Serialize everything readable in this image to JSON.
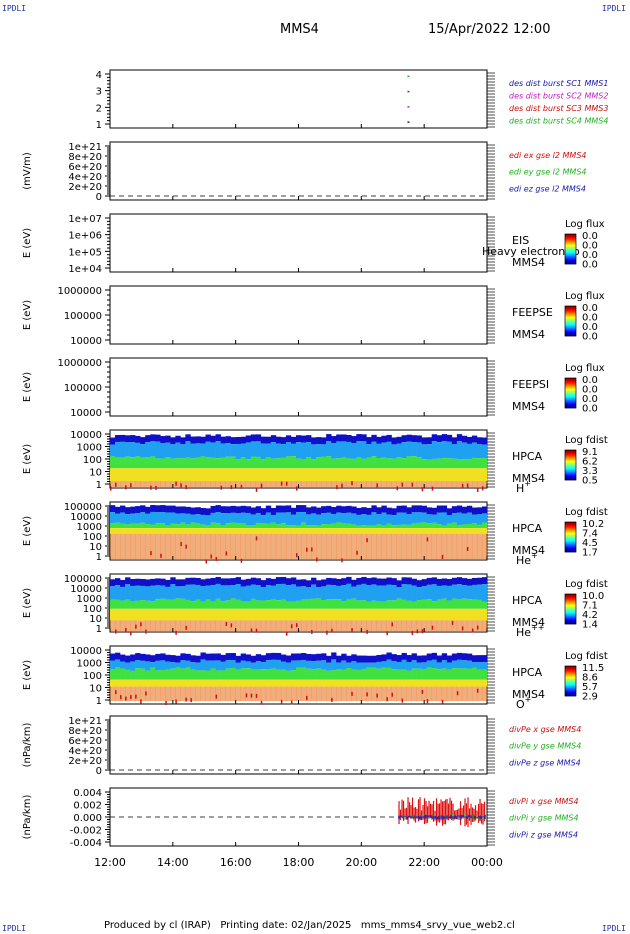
{
  "header": {
    "corner_tl": "IPDLI",
    "corner_tr": "IPDLI",
    "corner_bl": "IPDLI",
    "corner_br": "IPDLI",
    "spacecraft": "MMS4",
    "datetime": "15/Apr/2022 12:00"
  },
  "footer": {
    "text": "Produced by cl (IRAP)   Printing date: 02/Jan/2025   mms_mms4_srvy_vue_web2.cl"
  },
  "chart_data": [
    {
      "id": "p1",
      "type": "scatter",
      "ylabel": "",
      "ticks": [
        "1",
        "2",
        "3",
        "4"
      ],
      "ylim": [
        0.6,
        4.4
      ],
      "legend": [
        {
          "text": "des dist burst SC1 MMS1",
          "color": "#1a1aa8"
        },
        {
          "text": "des dist burst SC2 MMS2",
          "color": "#c020c0"
        },
        {
          "text": "des dist burst SC3 MMS3",
          "color": "#d01010"
        },
        {
          "text": "des dist burst SC4 MMS4",
          "color": "#20b020"
        }
      ],
      "points": [
        [
          21.5,
          4,
          "#20b020"
        ],
        [
          21.5,
          3,
          "#d01010"
        ],
        [
          21.5,
          2,
          "#c020c0"
        ],
        [
          21.5,
          1,
          "#1a1aa8"
        ]
      ]
    },
    {
      "id": "p2",
      "type": "line",
      "ylabel": "(mV/m)",
      "ticks": [
        "0",
        "2e+20",
        "4e+20",
        "6e+20",
        "8e+20",
        "1e+21"
      ],
      "legend": [
        {
          "text": "edi ex gse l2 MMS4",
          "color": "#d01010"
        },
        {
          "text": "edi ey gse l2 MMS4",
          "color": "#20b020"
        },
        {
          "text": "edi ez gse l2 MMS4",
          "color": "#1a1aa8"
        }
      ]
    },
    {
      "id": "p3",
      "type": "heatmap",
      "ylabel": "E (eV)",
      "ticks": [
        "1e+04",
        "1e+05",
        "1e+06",
        "1e+07"
      ],
      "labels": [
        "EIS",
        "MMS4"
      ],
      "overlay": "Heavy electron to",
      "colorbar": {
        "title": "Log flux",
        "values": [
          "0.0",
          "0.0",
          "0.0",
          "0.0"
        ]
      },
      "spectrum": null
    },
    {
      "id": "p4",
      "type": "heatmap",
      "ylabel": "E (eV)",
      "ticks": [
        "10000",
        "100000",
        "1000000"
      ],
      "labels": [
        "FEEPSE",
        "MMS4"
      ],
      "colorbar": {
        "title": "Log flux",
        "values": [
          "0.0",
          "0.0",
          "0.0",
          "0.0"
        ]
      },
      "spectrum": null
    },
    {
      "id": "p5",
      "type": "heatmap",
      "ylabel": "E (eV)",
      "ticks": [
        "10000",
        "100000",
        "1000000"
      ],
      "labels": [
        "FEEPSI",
        "MMS4"
      ],
      "colorbar": {
        "title": "Log flux",
        "values": [
          "0.0",
          "0.0",
          "0.0",
          "0.0"
        ]
      },
      "spectrum": null
    },
    {
      "id": "p6",
      "type": "heatmap",
      "ylabel": "E (eV)",
      "ticks": [
        "1",
        "10",
        "100",
        "1000",
        "10000"
      ],
      "labels": [
        "HPCA",
        "MMS4"
      ],
      "species": "H",
      "charge": "+",
      "colorbar": {
        "title": "Log fdist",
        "values": [
          "9.1",
          "6.2",
          "3.3",
          "0.5"
        ]
      },
      "spectrum": {
        "top": 0.9,
        "blue": 0.78,
        "green": 0.52,
        "yellow": 0.34,
        "red": 0.12,
        "bottom": 0.0
      }
    },
    {
      "id": "p7",
      "type": "heatmap",
      "ylabel": "E (eV)",
      "ticks": [
        "1",
        "10",
        "100",
        "1000",
        "10000",
        "100000"
      ],
      "labels": [
        "HPCA",
        "MMS4"
      ],
      "species": "He",
      "charge": "+",
      "colorbar": {
        "title": "Log fdist",
        "values": [
          "10.2",
          "7.4",
          "4.5",
          "1.7"
        ]
      },
      "spectrum": {
        "top": 0.92,
        "blue": 0.8,
        "green": 0.62,
        "yellow": 0.55,
        "red": 0.45,
        "bottom": 0.0
      }
    },
    {
      "id": "p8",
      "type": "heatmap",
      "ylabel": "E (eV)",
      "ticks": [
        "1",
        "10",
        "100",
        "1000",
        "10000",
        "100000"
      ],
      "labels": [
        "HPCA",
        "MMS4"
      ],
      "species": "He",
      "charge": "++",
      "colorbar": {
        "title": "Log fdist",
        "values": [
          "10.0",
          "7.1",
          "4.2",
          "1.4"
        ]
      },
      "spectrum": {
        "top": 0.92,
        "blue": 0.8,
        "green": 0.55,
        "yellow": 0.4,
        "red": 0.2,
        "bottom": 0.0
      }
    },
    {
      "id": "p9",
      "type": "heatmap",
      "ylabel": "E (eV)",
      "ticks": [
        "1",
        "10",
        "100",
        "1000",
        "10000"
      ],
      "labels": [
        "HPCA",
        "MMS4"
      ],
      "species": "O",
      "charge": "+",
      "colorbar": {
        "title": "Log fdist",
        "values": [
          "11.5",
          "8.6",
          "5.7",
          "2.9"
        ]
      },
      "spectrum": {
        "top": 0.86,
        "blue": 0.74,
        "green": 0.6,
        "yellow": 0.42,
        "red": 0.3,
        "bottom": 0.05
      }
    },
    {
      "id": "p10",
      "type": "line",
      "ylabel": "(nPa/km)",
      "ticks": [
        "0",
        "2e+20",
        "4e+20",
        "6e+20",
        "8e+20",
        "1e+21"
      ],
      "legend": [
        {
          "text": "divPe x gse MMS4",
          "color": "#d01010"
        },
        {
          "text": "divPe y gse MMS4",
          "color": "#20b020"
        },
        {
          "text": "divPe z gse MMS4",
          "color": "#1a1aa8"
        }
      ]
    },
    {
      "id": "p11",
      "type": "line",
      "ylabel": "(nPa/km)",
      "ticks": [
        "-0.004",
        "-0.002",
        "0.000",
        "0.002",
        "0.004"
      ],
      "ylim": [
        -0.0055,
        0.0055
      ],
      "legend": [
        {
          "text": "divPi x gse MMS4",
          "color": "#d01010"
        },
        {
          "text": "divPi y gse MMS4",
          "color": "#20b020"
        },
        {
          "text": "divPi z gse MMS4",
          "color": "#1a1aa8"
        }
      ],
      "signal": {
        "start": 21.2,
        "amplitude": 0.0038
      }
    }
  ],
  "time_axis": {
    "ticks": [
      "12:00",
      "14:00",
      "16:00",
      "18:00",
      "20:00",
      "22:00",
      "00:00"
    ],
    "range_hours": [
      12,
      24
    ]
  }
}
